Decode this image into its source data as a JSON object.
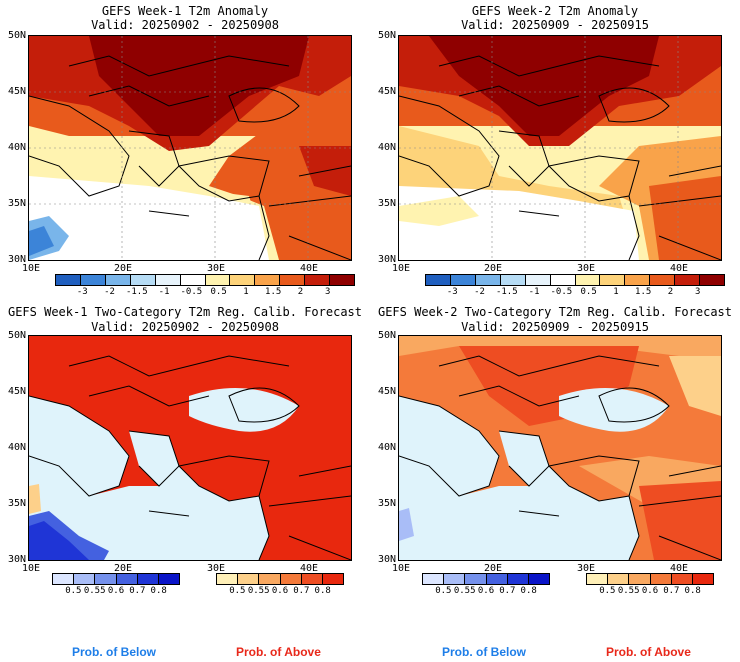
{
  "panels": [
    {
      "title": "GEFS Week-1 T2m Anomaly",
      "valid": "Valid: 20250902 - 20250908",
      "lat_labels": [
        "50N",
        "45N",
        "40N",
        "35N",
        "30N"
      ],
      "lon_labels": [
        "10E",
        "20E",
        "30E",
        "40E"
      ],
      "cbar_ticks": [
        "-3",
        "-2",
        "-1.5",
        "-1",
        "-0.5",
        "0.5",
        "1",
        "1.5",
        "2",
        "3"
      ]
    },
    {
      "title": "GEFS Week-2 T2m Anomaly",
      "valid": "Valid: 20250909 - 20250915",
      "lat_labels": [
        "50N",
        "45N",
        "40N",
        "35N",
        "30N"
      ],
      "lon_labels": [
        "10E",
        "20E",
        "30E",
        "40E"
      ],
      "cbar_ticks": [
        "-3",
        "-2",
        "-1.5",
        "-1",
        "-0.5",
        "0.5",
        "1",
        "1.5",
        "2",
        "3"
      ]
    },
    {
      "title": "GEFS Week-1 Two-Category T2m Reg. Calib. Forecast",
      "valid": "Valid: 20250902 - 20250908",
      "lat_labels": [
        "50N",
        "45N",
        "40N",
        "35N",
        "30N"
      ],
      "lon_labels": [
        "10E",
        "20E",
        "30E",
        "40E"
      ],
      "below_ticks": [
        "0.5",
        "0.55",
        "0.6",
        "0.7",
        "0.8"
      ],
      "above_ticks": [
        "0.5",
        "0.55",
        "0.6",
        "0.7",
        "0.8"
      ],
      "below_label": "Prob. of Below",
      "above_label": "Prob. of Above"
    },
    {
      "title": "GEFS Week-2 Two-Category T2m Reg. Calib. Forecast",
      "valid": "Valid: 20250909 - 20250915",
      "lat_labels": [
        "50N",
        "45N",
        "40N",
        "35N",
        "30N"
      ],
      "lon_labels": [
        "10E",
        "20E",
        "30E",
        "40E"
      ],
      "below_ticks": [
        "0.5",
        "0.55",
        "0.6",
        "0.7",
        "0.8"
      ],
      "above_ticks": [
        "0.5",
        "0.55",
        "0.6",
        "0.7",
        "0.8"
      ],
      "below_label": "Prob. of Below",
      "above_label": "Prob. of Above"
    }
  ],
  "colors": {
    "anomaly_scale": [
      "#1f5fbf",
      "#3c84d8",
      "#79b5ea",
      "#b6dcf5",
      "#e7f3fb",
      "#ffffff",
      "#fff3b0",
      "#fdd37a",
      "#f9a34a",
      "#e85a1c",
      "#c41e0a",
      "#8f0000"
    ],
    "below_scale": [
      "#dce6ff",
      "#a9bdf7",
      "#7591ec",
      "#4461e0",
      "#1f35d6",
      "#0a14c8"
    ],
    "above_scale": [
      "#fff0b8",
      "#fdd08a",
      "#f9a860",
      "#f47a3a",
      "#ee4d22",
      "#e8280e"
    ],
    "water": "#dff3fb",
    "below_label_color": "#1e7ee8",
    "above_label_color": "#e8281a"
  }
}
